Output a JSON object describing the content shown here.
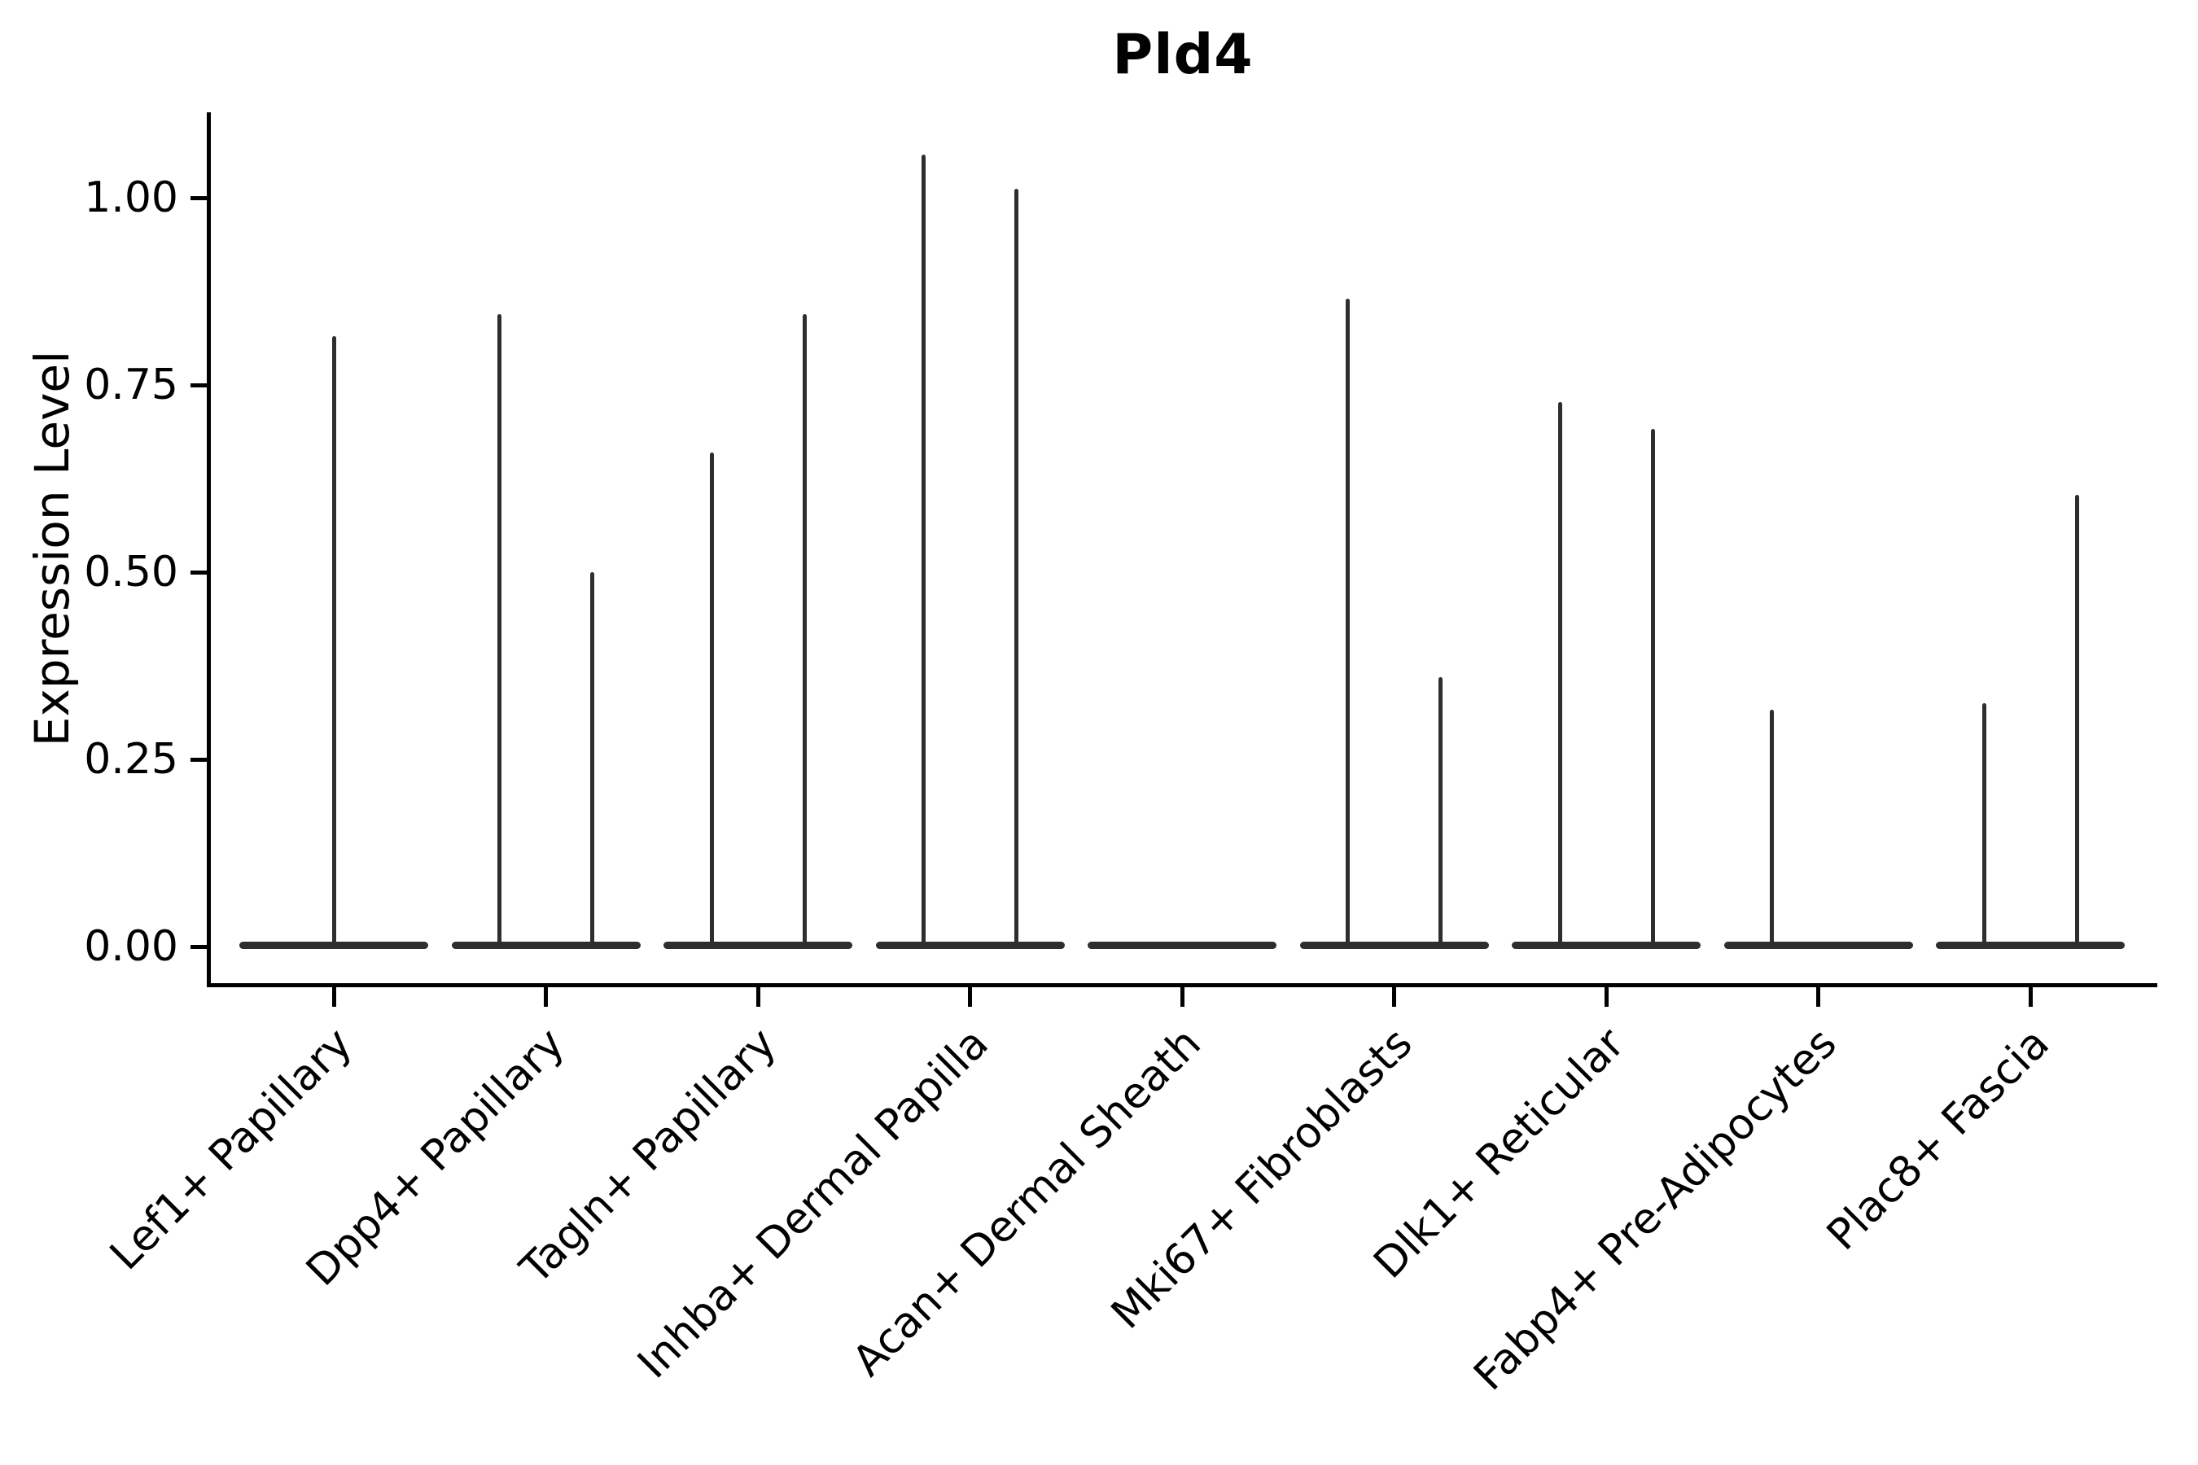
{
  "title": "Pld4",
  "y_axis": {
    "label": "Expression Level",
    "tick_labels": [
      "1.00",
      "0.75",
      "0.50",
      "0.25",
      "0.00"
    ]
  },
  "x_axis": {
    "categories": [
      "Lef1+ Papillary",
      "Dpp4+ Papillary",
      "Tagln+ Papillary",
      "Inhba+ Dermal Papilla",
      "Acan+ Dermal Sheath",
      "Mki67+ Fibroblasts",
      "Dlk1+ Reticular",
      "Fabp4+ Pre-Adipocytes",
      "Plac8+ Fascia"
    ]
  },
  "chart_data": {
    "type": "violin",
    "title": "Pld4",
    "xlabel": "",
    "ylabel": "Expression Level",
    "ylim": [
      0,
      1.11
    ],
    "yticks": [
      0.0,
      0.25,
      0.5,
      0.75,
      1.0
    ],
    "grid": false,
    "legend": "none",
    "categories": [
      "Lef1+ Papillary",
      "Dpp4+ Papillary",
      "Tagln+ Papillary",
      "Inhba+ Dermal Papilla",
      "Acan+ Dermal Sheath",
      "Mki67+ Fibroblasts",
      "Dlk1+ Reticular",
      "Fabp4+ Pre-Adipocytes",
      "Plac8+ Fascia"
    ],
    "violins": [
      {
        "category": "Lef1+ Papillary",
        "baseline_value": 0,
        "spikes": [
          {
            "side": "center",
            "max": 0.815
          }
        ]
      },
      {
        "category": "Dpp4+ Papillary",
        "baseline_value": 0,
        "spikes": [
          {
            "side": "left",
            "max": 0.845
          },
          {
            "side": "right",
            "max": 0.5
          }
        ]
      },
      {
        "category": "Tagln+ Papillary",
        "baseline_value": 0,
        "spikes": [
          {
            "side": "left",
            "max": 0.66
          },
          {
            "side": "right",
            "max": 0.845
          }
        ]
      },
      {
        "category": "Inhba+ Dermal Papilla",
        "baseline_value": 0,
        "spikes": [
          {
            "side": "left",
            "max": 1.058
          },
          {
            "side": "right",
            "max": 1.012
          }
        ]
      },
      {
        "category": "Acan+ Dermal Sheath",
        "baseline_value": 0,
        "spikes": []
      },
      {
        "category": "Mki67+ Fibroblasts",
        "baseline_value": 0,
        "spikes": [
          {
            "side": "left",
            "max": 0.865
          },
          {
            "side": "right",
            "max": 0.36
          }
        ]
      },
      {
        "category": "Dlk1+ Reticular",
        "baseline_value": 0,
        "spikes": [
          {
            "side": "left",
            "max": 0.727
          },
          {
            "side": "right",
            "max": 0.691
          }
        ]
      },
      {
        "category": "Fabp4+ Pre-Adipocytes",
        "baseline_value": 0,
        "spikes": [
          {
            "side": "left",
            "max": 0.316
          }
        ]
      },
      {
        "category": "Plac8+ Fascia",
        "baseline_value": 0,
        "spikes": [
          {
            "side": "left",
            "max": 0.325
          },
          {
            "side": "right",
            "max": 0.603
          }
        ]
      }
    ],
    "colors": {
      "violin_stroke": "#2e2e2e",
      "axis": "#000000",
      "text": "#000000",
      "background": "#ffffff"
    }
  }
}
